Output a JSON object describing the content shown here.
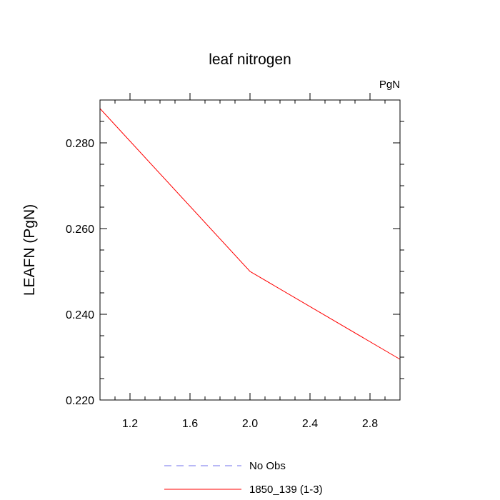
{
  "chart_data": {
    "type": "line",
    "title": "leaf nitrogen",
    "units_label": "PgN",
    "xlabel": "",
    "ylabel": "LEAFN  (PgN)",
    "xlim": [
      1.0,
      3.0
    ],
    "ylim": [
      0.22,
      0.29
    ],
    "x_ticks": [
      1.2,
      1.6,
      2.0,
      2.4,
      2.8
    ],
    "x_tick_labels": [
      "1.2",
      "1.6",
      "2.0",
      "2.4",
      "2.8"
    ],
    "y_ticks": [
      0.22,
      0.24,
      0.26,
      0.28
    ],
    "y_tick_labels": [
      "0.220",
      "0.240",
      "0.260",
      "0.280"
    ],
    "series": [
      {
        "name": "1850_139 (1-3)",
        "color": "#ff0000",
        "style": "solid",
        "x": [
          1.0,
          2.0,
          3.0
        ],
        "y": [
          0.288,
          0.25,
          0.2295
        ]
      },
      {
        "name": "No Obs",
        "color": "#7070ee",
        "style": "dashed",
        "x": [],
        "y": []
      }
    ],
    "legend": [
      {
        "label": "No Obs",
        "color": "#7070ee",
        "style": "dashed"
      },
      {
        "label": "1850_139 (1-3)",
        "color": "#ff0000",
        "style": "solid"
      }
    ],
    "legend_position": "bottom"
  }
}
